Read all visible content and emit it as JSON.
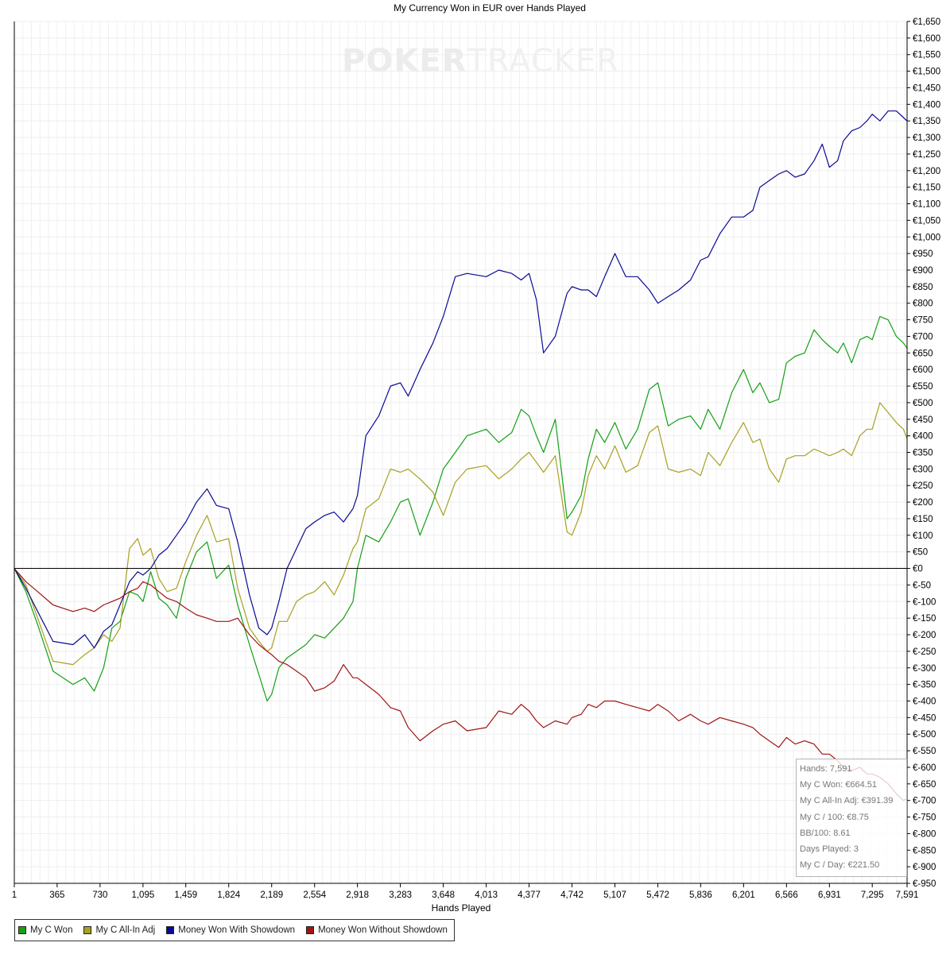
{
  "chart_data": {
    "type": "line",
    "title": "My Currency Won in EUR over Hands Played",
    "xlabel": "Hands Played",
    "ylabel": "",
    "xlim": [
      1,
      7591
    ],
    "ylim": [
      -950,
      1650
    ],
    "x_ticks": [
      1,
      365,
      730,
      1095,
      1459,
      1824,
      2189,
      2554,
      2918,
      3283,
      3648,
      4013,
      4377,
      4742,
      5107,
      5472,
      5836,
      6201,
      6566,
      6931,
      7295,
      7591
    ],
    "x_tick_labels": [
      "1",
      "365",
      "730",
      "1,095",
      "1,459",
      "1,824",
      "2,189",
      "2,554",
      "2,918",
      "3,283",
      "3,648",
      "4,013",
      "4,377",
      "4,742",
      "5,107",
      "5,472",
      "5,836",
      "6,201",
      "6,566",
      "6,931",
      "7,295",
      "7,591"
    ],
    "y_tick_step": 50,
    "y_axis_side": "right",
    "y_format": "euro",
    "grid": true,
    "legend_position": "bottom-left",
    "series": [
      {
        "name": "My C Won",
        "color": "#14a014",
        "x": [
          1,
          100,
          200,
          330,
          500,
          600,
          680,
          760,
          830,
          900,
          980,
          1050,
          1095,
          1160,
          1230,
          1300,
          1380,
          1459,
          1550,
          1640,
          1720,
          1824,
          1900,
          2000,
          2080,
          2150,
          2189,
          2250,
          2320,
          2400,
          2480,
          2554,
          2640,
          2720,
          2800,
          2880,
          2918,
          2990,
          3100,
          3200,
          3283,
          3350,
          3450,
          3560,
          3648,
          3750,
          3850,
          4013,
          4120,
          4230,
          4310,
          4377,
          4440,
          4500,
          4600,
          4700,
          4742,
          4820,
          4880,
          4950,
          5020,
          5107,
          5200,
          5300,
          5400,
          5472,
          5560,
          5650,
          5750,
          5836,
          5900,
          6000,
          6100,
          6201,
          6280,
          6340,
          6420,
          6500,
          6566,
          6640,
          6720,
          6800,
          6870,
          6931,
          7000,
          7050,
          7120,
          7190,
          7250,
          7295,
          7360,
          7430,
          7500,
          7560,
          7591
        ],
        "y": [
          0,
          -70,
          -170,
          -310,
          -350,
          -330,
          -370,
          -300,
          -180,
          -160,
          -70,
          -80,
          -100,
          -10,
          -90,
          -110,
          -150,
          -30,
          50,
          80,
          -30,
          10,
          -110,
          -230,
          -320,
          -400,
          -380,
          -300,
          -270,
          -250,
          -230,
          -200,
          -210,
          -180,
          -150,
          -100,
          0,
          100,
          80,
          140,
          200,
          210,
          100,
          200,
          300,
          350,
          400,
          420,
          380,
          410,
          480,
          460,
          400,
          350,
          450,
          150,
          170,
          220,
          330,
          420,
          380,
          440,
          360,
          420,
          540,
          560,
          430,
          450,
          460,
          420,
          480,
          420,
          530,
          600,
          530,
          560,
          500,
          510,
          620,
          640,
          650,
          720,
          690,
          670,
          650,
          680,
          620,
          690,
          700,
          690,
          760,
          750,
          700,
          680,
          664.51
        ]
      },
      {
        "name": "My C All-In Adj",
        "color": "#a8a020",
        "x": [
          1,
          100,
          200,
          330,
          500,
          600,
          680,
          760,
          830,
          900,
          980,
          1050,
          1095,
          1160,
          1230,
          1300,
          1380,
          1459,
          1550,
          1640,
          1720,
          1824,
          1900,
          2000,
          2080,
          2150,
          2189,
          2250,
          2320,
          2400,
          2480,
          2554,
          2640,
          2720,
          2800,
          2880,
          2918,
          2990,
          3100,
          3200,
          3283,
          3350,
          3450,
          3560,
          3648,
          3750,
          3850,
          4013,
          4120,
          4230,
          4310,
          4377,
          4440,
          4500,
          4600,
          4700,
          4742,
          4820,
          4880,
          4950,
          5020,
          5107,
          5200,
          5300,
          5400,
          5472,
          5560,
          5650,
          5750,
          5836,
          5900,
          6000,
          6100,
          6201,
          6280,
          6340,
          6420,
          6500,
          6566,
          6640,
          6720,
          6800,
          6870,
          6931,
          7000,
          7050,
          7120,
          7190,
          7250,
          7295,
          7360,
          7430,
          7500,
          7560,
          7591
        ],
        "y": [
          0,
          -50,
          -150,
          -280,
          -290,
          -260,
          -240,
          -200,
          -220,
          -180,
          60,
          90,
          40,
          60,
          -30,
          -70,
          -60,
          20,
          100,
          160,
          80,
          90,
          -60,
          -180,
          -220,
          -250,
          -240,
          -160,
          -160,
          -100,
          -80,
          -70,
          -40,
          -80,
          -20,
          60,
          80,
          180,
          210,
          300,
          290,
          300,
          270,
          230,
          160,
          260,
          300,
          310,
          270,
          300,
          330,
          350,
          320,
          290,
          340,
          110,
          100,
          170,
          280,
          340,
          300,
          370,
          290,
          310,
          410,
          430,
          300,
          290,
          300,
          280,
          350,
          310,
          380,
          440,
          380,
          390,
          300,
          260,
          330,
          340,
          340,
          360,
          350,
          340,
          350,
          360,
          340,
          400,
          420,
          420,
          500,
          470,
          440,
          420,
          391.39
        ]
      },
      {
        "name": "Money Won With Showdown",
        "color": "#0a0a96",
        "x": [
          1,
          100,
          200,
          330,
          500,
          600,
          680,
          760,
          830,
          900,
          980,
          1050,
          1095,
          1160,
          1230,
          1300,
          1380,
          1459,
          1550,
          1640,
          1720,
          1824,
          1900,
          2000,
          2080,
          2150,
          2189,
          2250,
          2320,
          2400,
          2480,
          2554,
          2640,
          2720,
          2800,
          2880,
          2918,
          2990,
          3100,
          3200,
          3283,
          3350,
          3450,
          3560,
          3648,
          3750,
          3850,
          4013,
          4120,
          4230,
          4310,
          4377,
          4440,
          4500,
          4600,
          4700,
          4742,
          4820,
          4880,
          4950,
          5020,
          5107,
          5200,
          5300,
          5400,
          5472,
          5560,
          5650,
          5750,
          5836,
          5900,
          6000,
          6100,
          6201,
          6280,
          6340,
          6420,
          6500,
          6566,
          6640,
          6720,
          6800,
          6870,
          6931,
          7000,
          7050,
          7120,
          7190,
          7250,
          7295,
          7360,
          7430,
          7500,
          7560,
          7591
        ],
        "y": [
          0,
          -60,
          -130,
          -220,
          -230,
          -200,
          -240,
          -190,
          -170,
          -110,
          -40,
          -10,
          -20,
          0,
          40,
          60,
          100,
          140,
          200,
          240,
          190,
          180,
          80,
          -80,
          -180,
          -200,
          -180,
          -100,
          0,
          60,
          120,
          140,
          160,
          170,
          140,
          180,
          220,
          400,
          460,
          550,
          560,
          520,
          600,
          680,
          760,
          880,
          890,
          880,
          900,
          890,
          870,
          890,
          810,
          650,
          700,
          830,
          850,
          840,
          840,
          820,
          880,
          950,
          880,
          880,
          840,
          800,
          820,
          840,
          870,
          930,
          940,
          1010,
          1060,
          1060,
          1080,
          1150,
          1170,
          1190,
          1200,
          1180,
          1190,
          1230,
          1280,
          1210,
          1230,
          1290,
          1320,
          1330,
          1350,
          1370,
          1350,
          1380,
          1380,
          1360,
          1350
        ]
      },
      {
        "name": "Money Won Without Showdown",
        "color": "#a01414",
        "x": [
          1,
          100,
          200,
          330,
          500,
          600,
          680,
          760,
          830,
          900,
          980,
          1050,
          1095,
          1160,
          1230,
          1300,
          1380,
          1459,
          1550,
          1640,
          1720,
          1824,
          1900,
          2000,
          2080,
          2150,
          2189,
          2250,
          2320,
          2400,
          2480,
          2554,
          2640,
          2720,
          2800,
          2880,
          2918,
          2990,
          3100,
          3200,
          3283,
          3350,
          3450,
          3560,
          3648,
          3750,
          3850,
          4013,
          4120,
          4230,
          4310,
          4377,
          4440,
          4500,
          4600,
          4700,
          4742,
          4820,
          4880,
          4950,
          5020,
          5107,
          5200,
          5300,
          5400,
          5472,
          5560,
          5650,
          5750,
          5836,
          5900,
          6000,
          6100,
          6201,
          6280,
          6340,
          6420,
          6500,
          6566,
          6640,
          6720,
          6800,
          6870,
          6931,
          7000,
          7050,
          7120,
          7190,
          7250,
          7295,
          7360,
          7430,
          7500,
          7560,
          7591
        ],
        "y": [
          0,
          -40,
          -70,
          -110,
          -130,
          -120,
          -130,
          -110,
          -100,
          -90,
          -70,
          -60,
          -40,
          -50,
          -70,
          -90,
          -100,
          -120,
          -140,
          -150,
          -160,
          -160,
          -150,
          -200,
          -230,
          -250,
          -260,
          -280,
          -290,
          -310,
          -330,
          -370,
          -360,
          -340,
          -290,
          -330,
          -330,
          -350,
          -380,
          -420,
          -430,
          -480,
          -520,
          -490,
          -470,
          -460,
          -490,
          -480,
          -430,
          -440,
          -410,
          -430,
          -460,
          -480,
          -460,
          -470,
          -450,
          -440,
          -410,
          -420,
          -400,
          -400,
          -410,
          -420,
          -430,
          -410,
          -430,
          -460,
          -440,
          -460,
          -470,
          -450,
          -460,
          -470,
          -480,
          -500,
          -520,
          -540,
          -510,
          -530,
          -520,
          -530,
          -560,
          -560,
          -580,
          -600,
          -610,
          -600,
          -620,
          -620,
          -630,
          -650,
          -680,
          -700,
          -695
        ]
      }
    ]
  },
  "legend": {
    "items": [
      {
        "label": "My C Won",
        "color": "#14a014"
      },
      {
        "label": "My C All-In Adj",
        "color": "#a8a020"
      },
      {
        "label": "Money Won With Showdown",
        "color": "#0a0a96"
      },
      {
        "label": "Money Won Without Showdown",
        "color": "#a01414"
      }
    ]
  },
  "stats": {
    "hands": "Hands: 7,591",
    "won": "My C Won: €664.51",
    "allin_adj": "My C All-In Adj: €391.39",
    "per100": "My C / 100: €8.75",
    "bb100": "BB/100: 8.61",
    "days": "Days Played: 3",
    "per_day": "My C / Day: €221.50"
  },
  "watermark": {
    "part1": "POKER",
    "part2": "TRACKER"
  }
}
